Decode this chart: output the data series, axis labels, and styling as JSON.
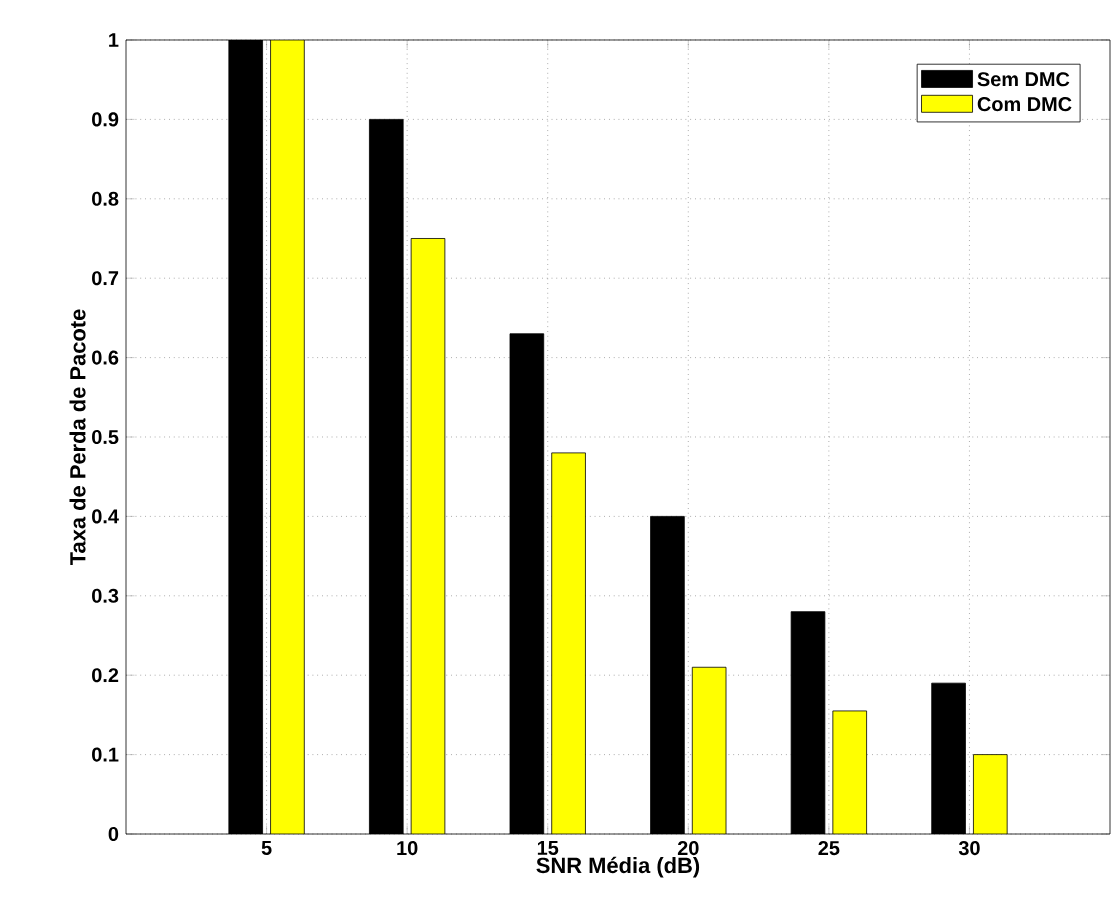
{
  "chart_data": {
    "type": "bar",
    "xlabel": "SNR Média (dB)",
    "ylabel": "Taxa de Perda de Pacote",
    "x": [
      5,
      10,
      15,
      20,
      25,
      30
    ],
    "series": [
      {
        "name": "Sem DMC",
        "color": "#000000",
        "values": [
          1.0,
          0.9,
          0.63,
          0.4,
          0.28,
          0.19
        ]
      },
      {
        "name": "Com DMC",
        "color": "#ffff00",
        "values": [
          1.0,
          0.75,
          0.48,
          0.21,
          0.155,
          0.1
        ]
      }
    ],
    "xlim": [
      0,
      35
    ],
    "ylim": [
      0,
      1
    ],
    "xticks": [
      5,
      10,
      15,
      20,
      25,
      30
    ],
    "yticks": [
      0,
      0.1,
      0.2,
      0.3,
      0.4,
      0.5,
      0.6,
      0.7,
      0.8,
      0.9,
      1
    ],
    "grid": true,
    "legend": "top right"
  }
}
